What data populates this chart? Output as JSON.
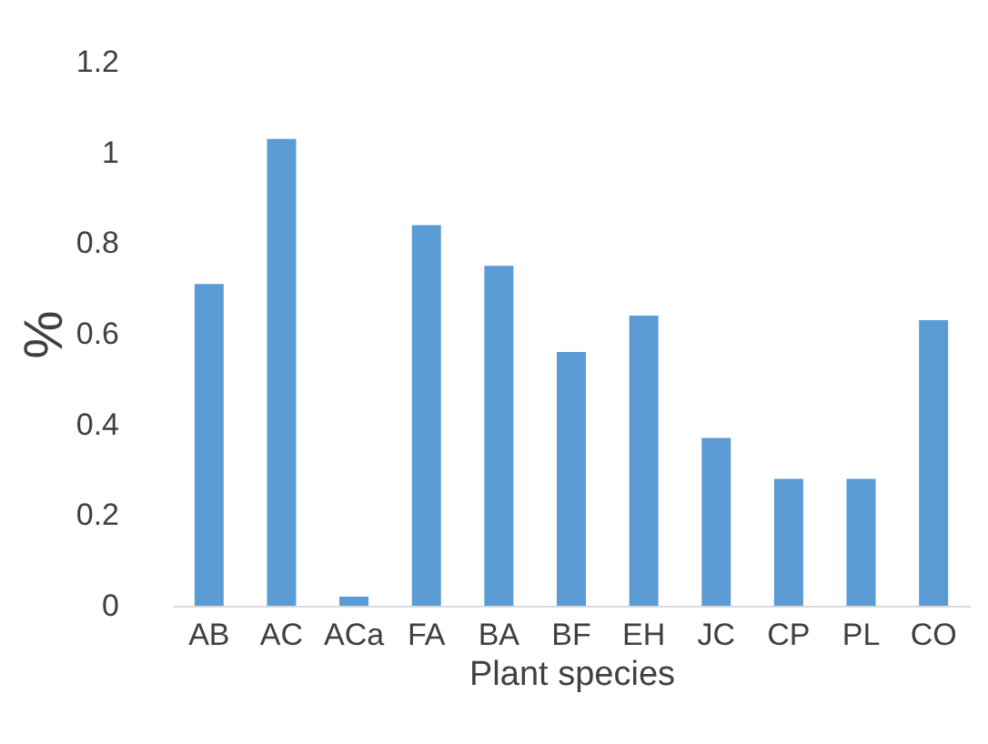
{
  "chart_data": {
    "type": "bar",
    "xlabel": "Plant species",
    "ylabel": "%",
    "categories": [
      "AB",
      "AC",
      "ACa",
      "FA",
      "BA",
      "BF",
      "EH",
      "JC",
      "CP",
      "PL",
      "CO"
    ],
    "values": [
      0.71,
      1.03,
      0.02,
      0.84,
      0.75,
      0.56,
      0.64,
      0.37,
      0.28,
      0.28,
      0.63
    ],
    "color": "#5b9bd5",
    "ylim": [
      0,
      1.2
    ],
    "yticks": [
      0,
      0.2,
      0.4,
      0.6,
      0.8,
      1,
      1.2
    ],
    "grid": false
  }
}
